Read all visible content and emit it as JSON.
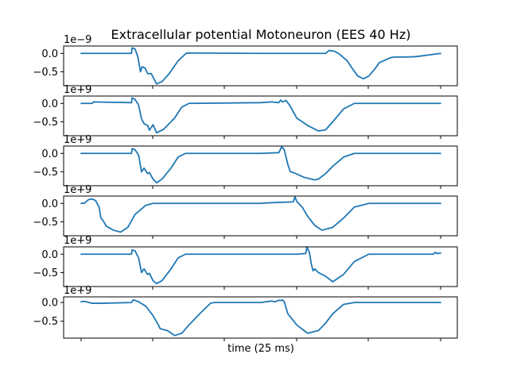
{
  "figure": {
    "title": "Extracellular potential Motoneuron (EES 40 Hz)",
    "xlabel": "time (25 ms)"
  },
  "chart_data": {
    "type": "line",
    "title": "Extracellular potential Motoneuron (EES 40 Hz)",
    "xlabel": "time (25 ms)",
    "line_color": "#1f77b4",
    "x_ticks_labeled": false,
    "xlim": [
      0,
      1
    ],
    "subplots": [
      {
        "ylim": [
          -0.88,
          0.2
        ],
        "yticks": [
          0.0,
          -0.5
        ],
        "ytick_labels": [
          "0.0",
          "−0.5"
        ],
        "y_offset_text": "1e−9",
        "x": [
          0.0,
          0.14,
          0.142,
          0.15,
          0.158,
          0.165,
          0.17,
          0.178,
          0.185,
          0.195,
          0.21,
          0.225,
          0.245,
          0.27,
          0.292,
          0.3,
          0.5,
          0.68,
          0.69,
          0.705,
          0.72,
          0.74,
          0.755,
          0.77,
          0.785,
          0.8,
          0.815,
          0.83,
          0.86,
          0.87,
          0.9,
          0.93,
          1.0
        ],
        "y": [
          0.0,
          0.0,
          0.15,
          0.12,
          -0.1,
          -0.5,
          -0.36,
          -0.4,
          -0.55,
          -0.55,
          -0.83,
          -0.77,
          -0.55,
          -0.2,
          0.0,
          0.01,
          0.0,
          0.0,
          0.08,
          0.06,
          -0.03,
          -0.2,
          -0.42,
          -0.62,
          -0.69,
          -0.62,
          -0.45,
          -0.25,
          -0.12,
          -0.1,
          -0.1,
          -0.09,
          0.0
        ]
      },
      {
        "ylim": [
          -0.88,
          0.2
        ],
        "yticks": [
          0.0,
          -0.5
        ],
        "ytick_labels": [
          "0.0",
          "−0.5"
        ],
        "y_offset_text": "1e+9",
        "x": [
          0.0,
          0.03,
          0.035,
          0.14,
          0.142,
          0.15,
          0.16,
          0.168,
          0.175,
          0.185,
          0.19,
          0.2,
          0.21,
          0.23,
          0.26,
          0.28,
          0.3,
          0.5,
          0.53,
          0.55,
          0.555,
          0.56,
          0.57,
          0.58,
          0.6,
          0.63,
          0.66,
          0.68,
          0.7,
          0.73,
          0.76,
          1.0
        ],
        "y": [
          0.0,
          0.0,
          0.04,
          0.02,
          0.15,
          0.11,
          -0.05,
          -0.42,
          -0.55,
          -0.6,
          -0.73,
          -0.58,
          -0.8,
          -0.7,
          -0.4,
          -0.1,
          0.0,
          0.02,
          0.04,
          0.02,
          0.09,
          0.04,
          0.08,
          -0.05,
          -0.4,
          -0.6,
          -0.75,
          -0.72,
          -0.5,
          -0.15,
          0.0,
          0.0
        ]
      },
      {
        "ylim": [
          -0.88,
          0.2
        ],
        "yticks": [
          0.0,
          -0.5
        ],
        "ytick_labels": [
          "0.0",
          "−0.5"
        ],
        "y_offset_text": "1e+9",
        "x": [
          0.0,
          0.14,
          0.142,
          0.15,
          0.16,
          0.168,
          0.175,
          0.185,
          0.19,
          0.2,
          0.21,
          0.225,
          0.25,
          0.27,
          0.29,
          0.5,
          0.55,
          0.558,
          0.565,
          0.575,
          0.582,
          0.59,
          0.62,
          0.65,
          0.66,
          0.68,
          0.7,
          0.73,
          0.76,
          1.0
        ],
        "y": [
          0.0,
          0.0,
          0.13,
          0.1,
          -0.05,
          -0.5,
          -0.4,
          -0.55,
          -0.52,
          -0.7,
          -0.8,
          -0.7,
          -0.4,
          -0.1,
          0.0,
          0.0,
          0.02,
          0.18,
          0.1,
          -0.3,
          -0.5,
          -0.52,
          -0.65,
          -0.72,
          -0.7,
          -0.55,
          -0.35,
          -0.1,
          0.0,
          0.0
        ]
      },
      {
        "ylim": [
          -0.88,
          0.2
        ],
        "yticks": [
          0.0,
          -0.5
        ],
        "ytick_labels": [
          "0.0",
          "−0.5"
        ],
        "y_offset_text": "1e+9",
        "x": [
          0.0,
          0.01,
          0.02,
          0.03,
          0.04,
          0.05,
          0.055,
          0.06,
          0.07,
          0.09,
          0.11,
          0.13,
          0.15,
          0.18,
          0.2,
          0.5,
          0.53,
          0.59,
          0.595,
          0.6,
          0.615,
          0.63,
          0.65,
          0.67,
          0.7,
          0.73,
          0.76,
          0.8,
          1.0
        ],
        "y": [
          0.0,
          0.01,
          0.1,
          0.12,
          0.08,
          -0.1,
          -0.4,
          -0.45,
          -0.62,
          -0.73,
          -0.78,
          -0.65,
          -0.3,
          -0.05,
          0.0,
          0.0,
          0.02,
          0.04,
          0.18,
          0.05,
          -0.1,
          -0.35,
          -0.6,
          -0.73,
          -0.65,
          -0.4,
          -0.1,
          0.0,
          0.0
        ]
      },
      {
        "ylim": [
          -0.88,
          0.2
        ],
        "yticks": [
          0.0,
          -0.5
        ],
        "ytick_labels": [
          "0.0",
          "−0.5"
        ],
        "y_offset_text": "1e+9",
        "x": [
          0.0,
          0.14,
          0.142,
          0.15,
          0.16,
          0.168,
          0.175,
          0.185,
          0.19,
          0.2,
          0.21,
          0.225,
          0.25,
          0.27,
          0.29,
          0.6,
          0.625,
          0.628,
          0.635,
          0.64,
          0.645,
          0.65,
          0.66,
          0.67,
          0.68,
          0.7,
          0.73,
          0.76,
          0.8,
          0.98,
          0.985,
          0.99,
          1.0
        ],
        "y": [
          0.0,
          0.0,
          0.12,
          0.09,
          -0.1,
          -0.5,
          -0.4,
          -0.55,
          -0.52,
          -0.72,
          -0.8,
          -0.72,
          -0.4,
          -0.1,
          0.0,
          0.0,
          0.02,
          0.2,
          0.05,
          -0.25,
          -0.45,
          -0.4,
          -0.5,
          -0.55,
          -0.6,
          -0.75,
          -0.55,
          -0.2,
          0.0,
          0.0,
          0.05,
          0.02,
          0.03
        ]
      },
      {
        "ylim": [
          -0.95,
          0.15
        ],
        "yticks": [
          0.0,
          -0.5
        ],
        "ytick_labels": [
          "0.0",
          "−0.5"
        ],
        "y_offset_text": "1e+9",
        "x": [
          0.0,
          0.01,
          0.03,
          0.06,
          0.14,
          0.145,
          0.16,
          0.18,
          0.2,
          0.215,
          0.22,
          0.24,
          0.26,
          0.28,
          0.3,
          0.33,
          0.36,
          0.37,
          0.5,
          0.53,
          0.54,
          0.55,
          0.555,
          0.56,
          0.565,
          0.575,
          0.6,
          0.63,
          0.66,
          0.68,
          0.7,
          0.73,
          0.76,
          1.0
        ],
        "y": [
          0.02,
          0.03,
          -0.02,
          -0.02,
          0.0,
          0.07,
          0.02,
          -0.1,
          -0.35,
          -0.6,
          -0.7,
          -0.75,
          -0.88,
          -0.82,
          -0.6,
          -0.3,
          -0.02,
          0.0,
          0.0,
          0.04,
          0.02,
          0.06,
          0.05,
          0.07,
          0.02,
          -0.3,
          -0.6,
          -0.82,
          -0.75,
          -0.55,
          -0.3,
          -0.05,
          0.0,
          0.0
        ]
      }
    ]
  }
}
